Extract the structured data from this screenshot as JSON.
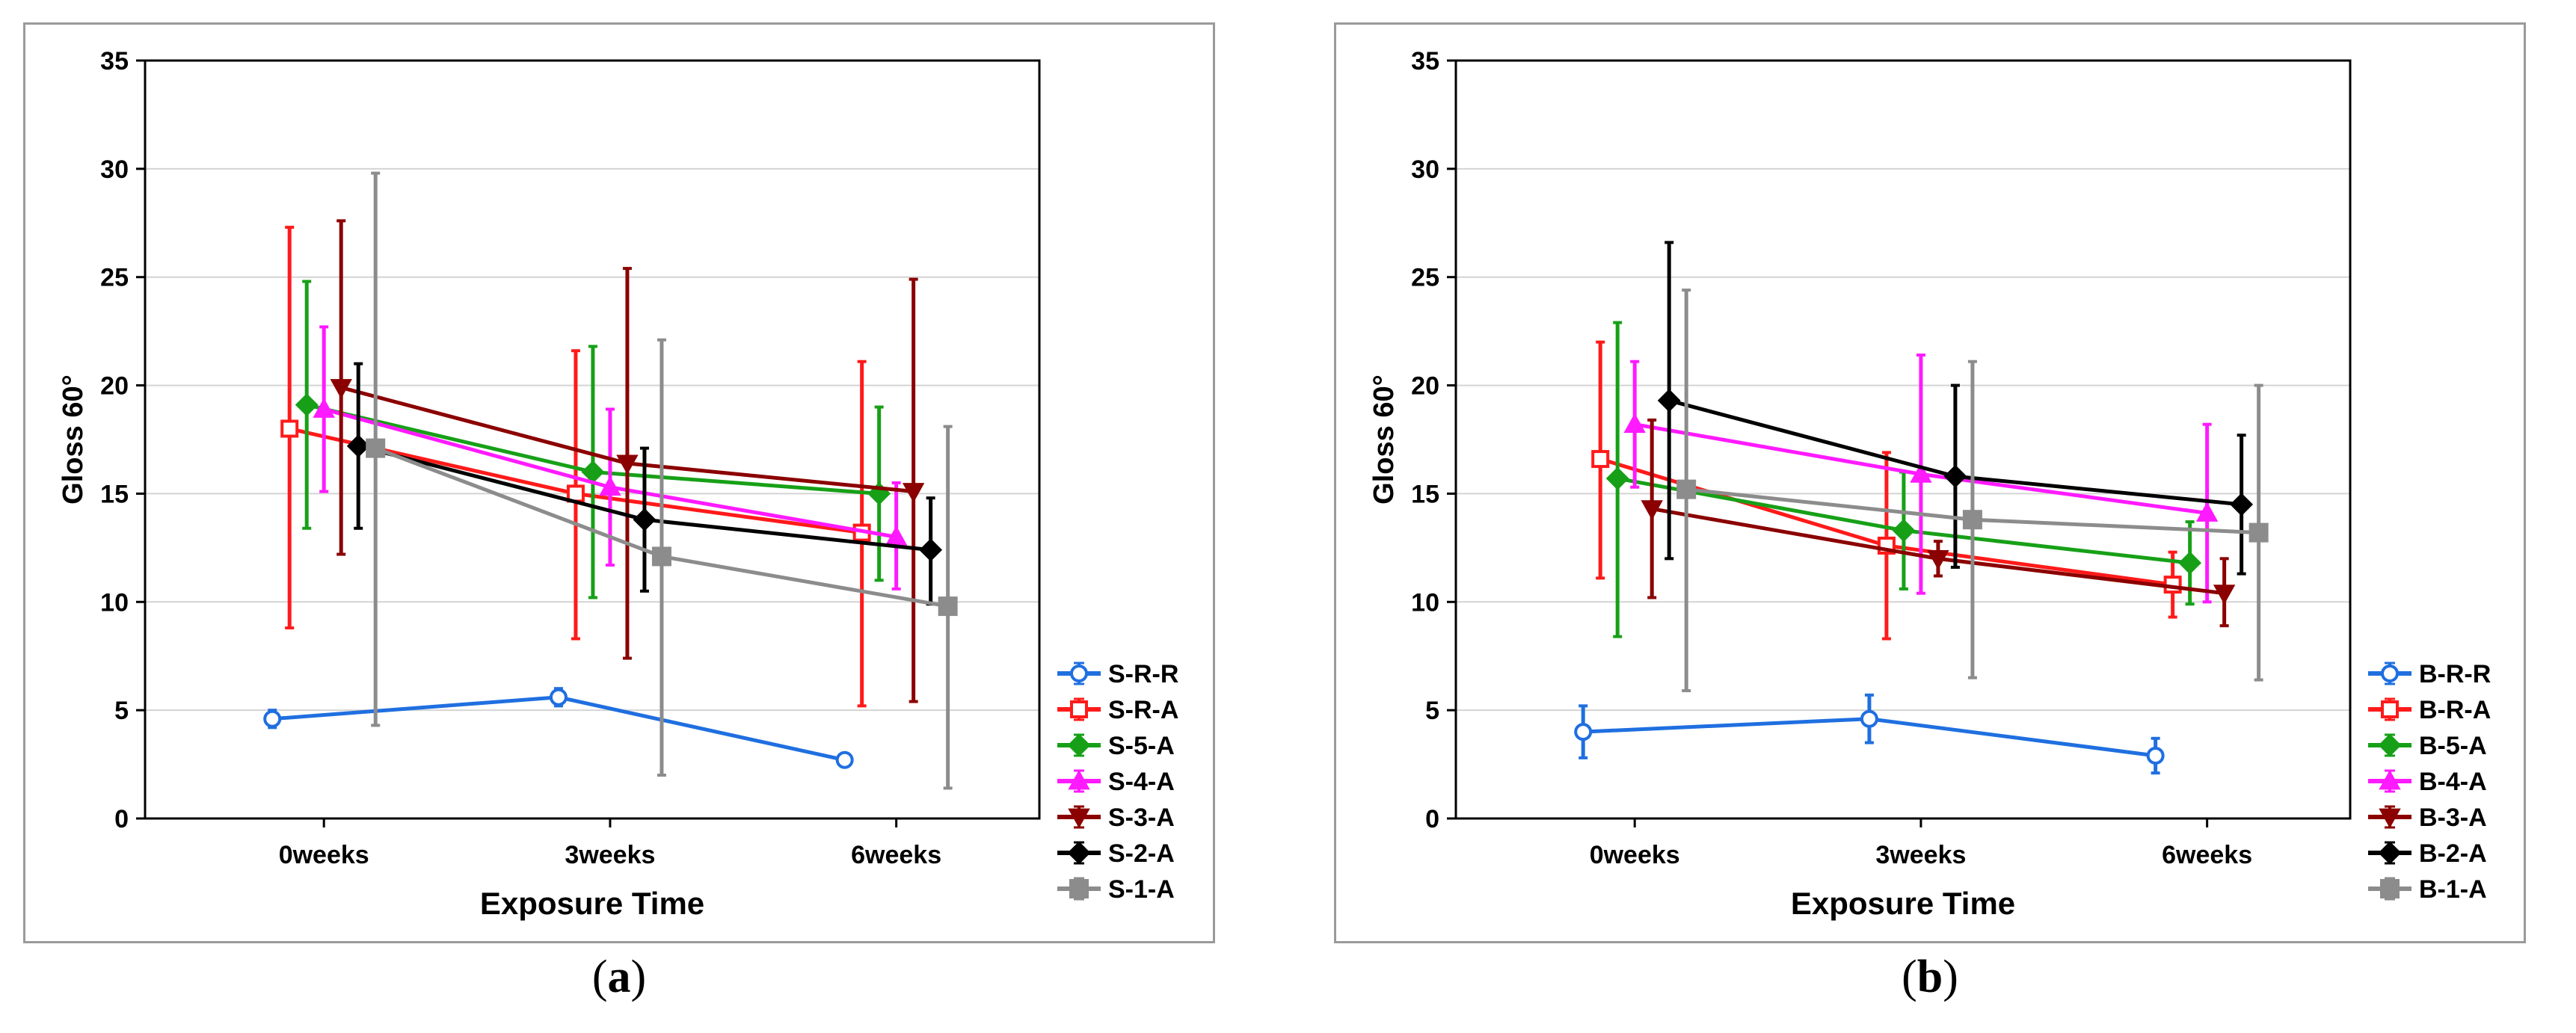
{
  "chart_data": [
    {
      "type": "line",
      "panel": "a",
      "caption": "a",
      "xlabel": "Exposure Time",
      "ylabel": "Gloss 60°",
      "categories": [
        "0weeks",
        "3weeks",
        "6weeks"
      ],
      "ylim": [
        0,
        35
      ],
      "yticks": [
        0,
        5,
        10,
        15,
        20,
        25,
        30,
        35
      ],
      "grid": true,
      "legend": "right-bottom",
      "series": [
        {
          "name": "S-R-R",
          "color": "#1f6fe0",
          "marker": "circle-open",
          "values": [
            4.6,
            5.6,
            2.7
          ],
          "lower": [
            4.2,
            5.2,
            2.5
          ],
          "upper": [
            5.0,
            6.0,
            2.9
          ]
        },
        {
          "name": "S-R-A",
          "color": "#ff1a1a",
          "marker": "square-open",
          "values": [
            18.0,
            15.0,
            13.2
          ],
          "lower": [
            8.8,
            8.3,
            5.2
          ],
          "upper": [
            27.3,
            21.6,
            21.1
          ]
        },
        {
          "name": "S-5-A",
          "color": "#17a017",
          "marker": "diamond",
          "values": [
            19.1,
            16.0,
            15.0
          ],
          "lower": [
            13.4,
            10.2,
            11.0
          ],
          "upper": [
            24.8,
            21.8,
            19.0
          ]
        },
        {
          "name": "S-4-A",
          "color": "#ff1aff",
          "marker": "triangle",
          "values": [
            18.9,
            15.3,
            13.0
          ],
          "lower": [
            15.1,
            11.7,
            10.6
          ],
          "upper": [
            22.7,
            18.9,
            15.5
          ]
        },
        {
          "name": "S-3-A",
          "color": "#8b0000",
          "marker": "triangle-down",
          "values": [
            19.9,
            16.4,
            15.1
          ],
          "lower": [
            12.2,
            7.4,
            5.4
          ],
          "upper": [
            27.6,
            25.4,
            24.9
          ]
        },
        {
          "name": "S-2-A",
          "color": "#000000",
          "marker": "diamond",
          "values": [
            17.2,
            13.8,
            12.4
          ],
          "lower": [
            13.4,
            10.5,
            9.9
          ],
          "upper": [
            21.0,
            17.1,
            14.8
          ]
        },
        {
          "name": "S-1-A",
          "color": "#8c8c8c",
          "marker": "square",
          "values": [
            17.1,
            12.1,
            9.8
          ],
          "lower": [
            4.3,
            2.0,
            1.4
          ],
          "upper": [
            29.8,
            22.1,
            18.1
          ]
        }
      ]
    },
    {
      "type": "line",
      "panel": "b",
      "caption": "b",
      "xlabel": "Exposure Time",
      "ylabel": "Gloss 60°",
      "categories": [
        "0weeks",
        "3weeks",
        "6weeks"
      ],
      "ylim": [
        0,
        35
      ],
      "yticks": [
        0,
        5,
        10,
        15,
        20,
        25,
        30,
        35
      ],
      "grid": true,
      "legend": "right-bottom",
      "series": [
        {
          "name": "B-R-R",
          "color": "#1f6fe0",
          "marker": "circle-open",
          "values": [
            4.0,
            4.6,
            2.9
          ],
          "lower": [
            2.8,
            3.5,
            2.1
          ],
          "upper": [
            5.2,
            5.7,
            3.7
          ]
        },
        {
          "name": "B-R-A",
          "color": "#ff1a1a",
          "marker": "square-open",
          "values": [
            16.6,
            12.6,
            10.8
          ],
          "lower": [
            11.1,
            8.3,
            9.3
          ],
          "upper": [
            22.0,
            16.9,
            12.3
          ]
        },
        {
          "name": "B-5-A",
          "color": "#17a017",
          "marker": "diamond",
          "values": [
            15.7,
            13.3,
            11.8
          ],
          "lower": [
            8.4,
            10.6,
            9.9
          ],
          "upper": [
            22.9,
            16.0,
            13.7
          ]
        },
        {
          "name": "B-4-A",
          "color": "#ff1aff",
          "marker": "triangle",
          "values": [
            18.2,
            15.9,
            14.1
          ],
          "lower": [
            15.3,
            10.4,
            10.0
          ],
          "upper": [
            21.1,
            21.4,
            18.2
          ]
        },
        {
          "name": "B-3-A",
          "color": "#8b0000",
          "marker": "triangle-down",
          "values": [
            14.3,
            12.0,
            10.4
          ],
          "lower": [
            10.2,
            11.2,
            8.9
          ],
          "upper": [
            18.4,
            12.8,
            12.0
          ]
        },
        {
          "name": "B-2-A",
          "color": "#000000",
          "marker": "diamond",
          "values": [
            19.3,
            15.8,
            14.5
          ],
          "lower": [
            12.0,
            11.6,
            11.3
          ],
          "upper": [
            26.6,
            20.0,
            17.7
          ]
        },
        {
          "name": "B-1-A",
          "color": "#8c8c8c",
          "marker": "square",
          "values": [
            15.2,
            13.8,
            13.2
          ],
          "lower": [
            5.9,
            6.5,
            6.4
          ],
          "upper": [
            24.4,
            21.1,
            20.0
          ]
        }
      ]
    }
  ]
}
